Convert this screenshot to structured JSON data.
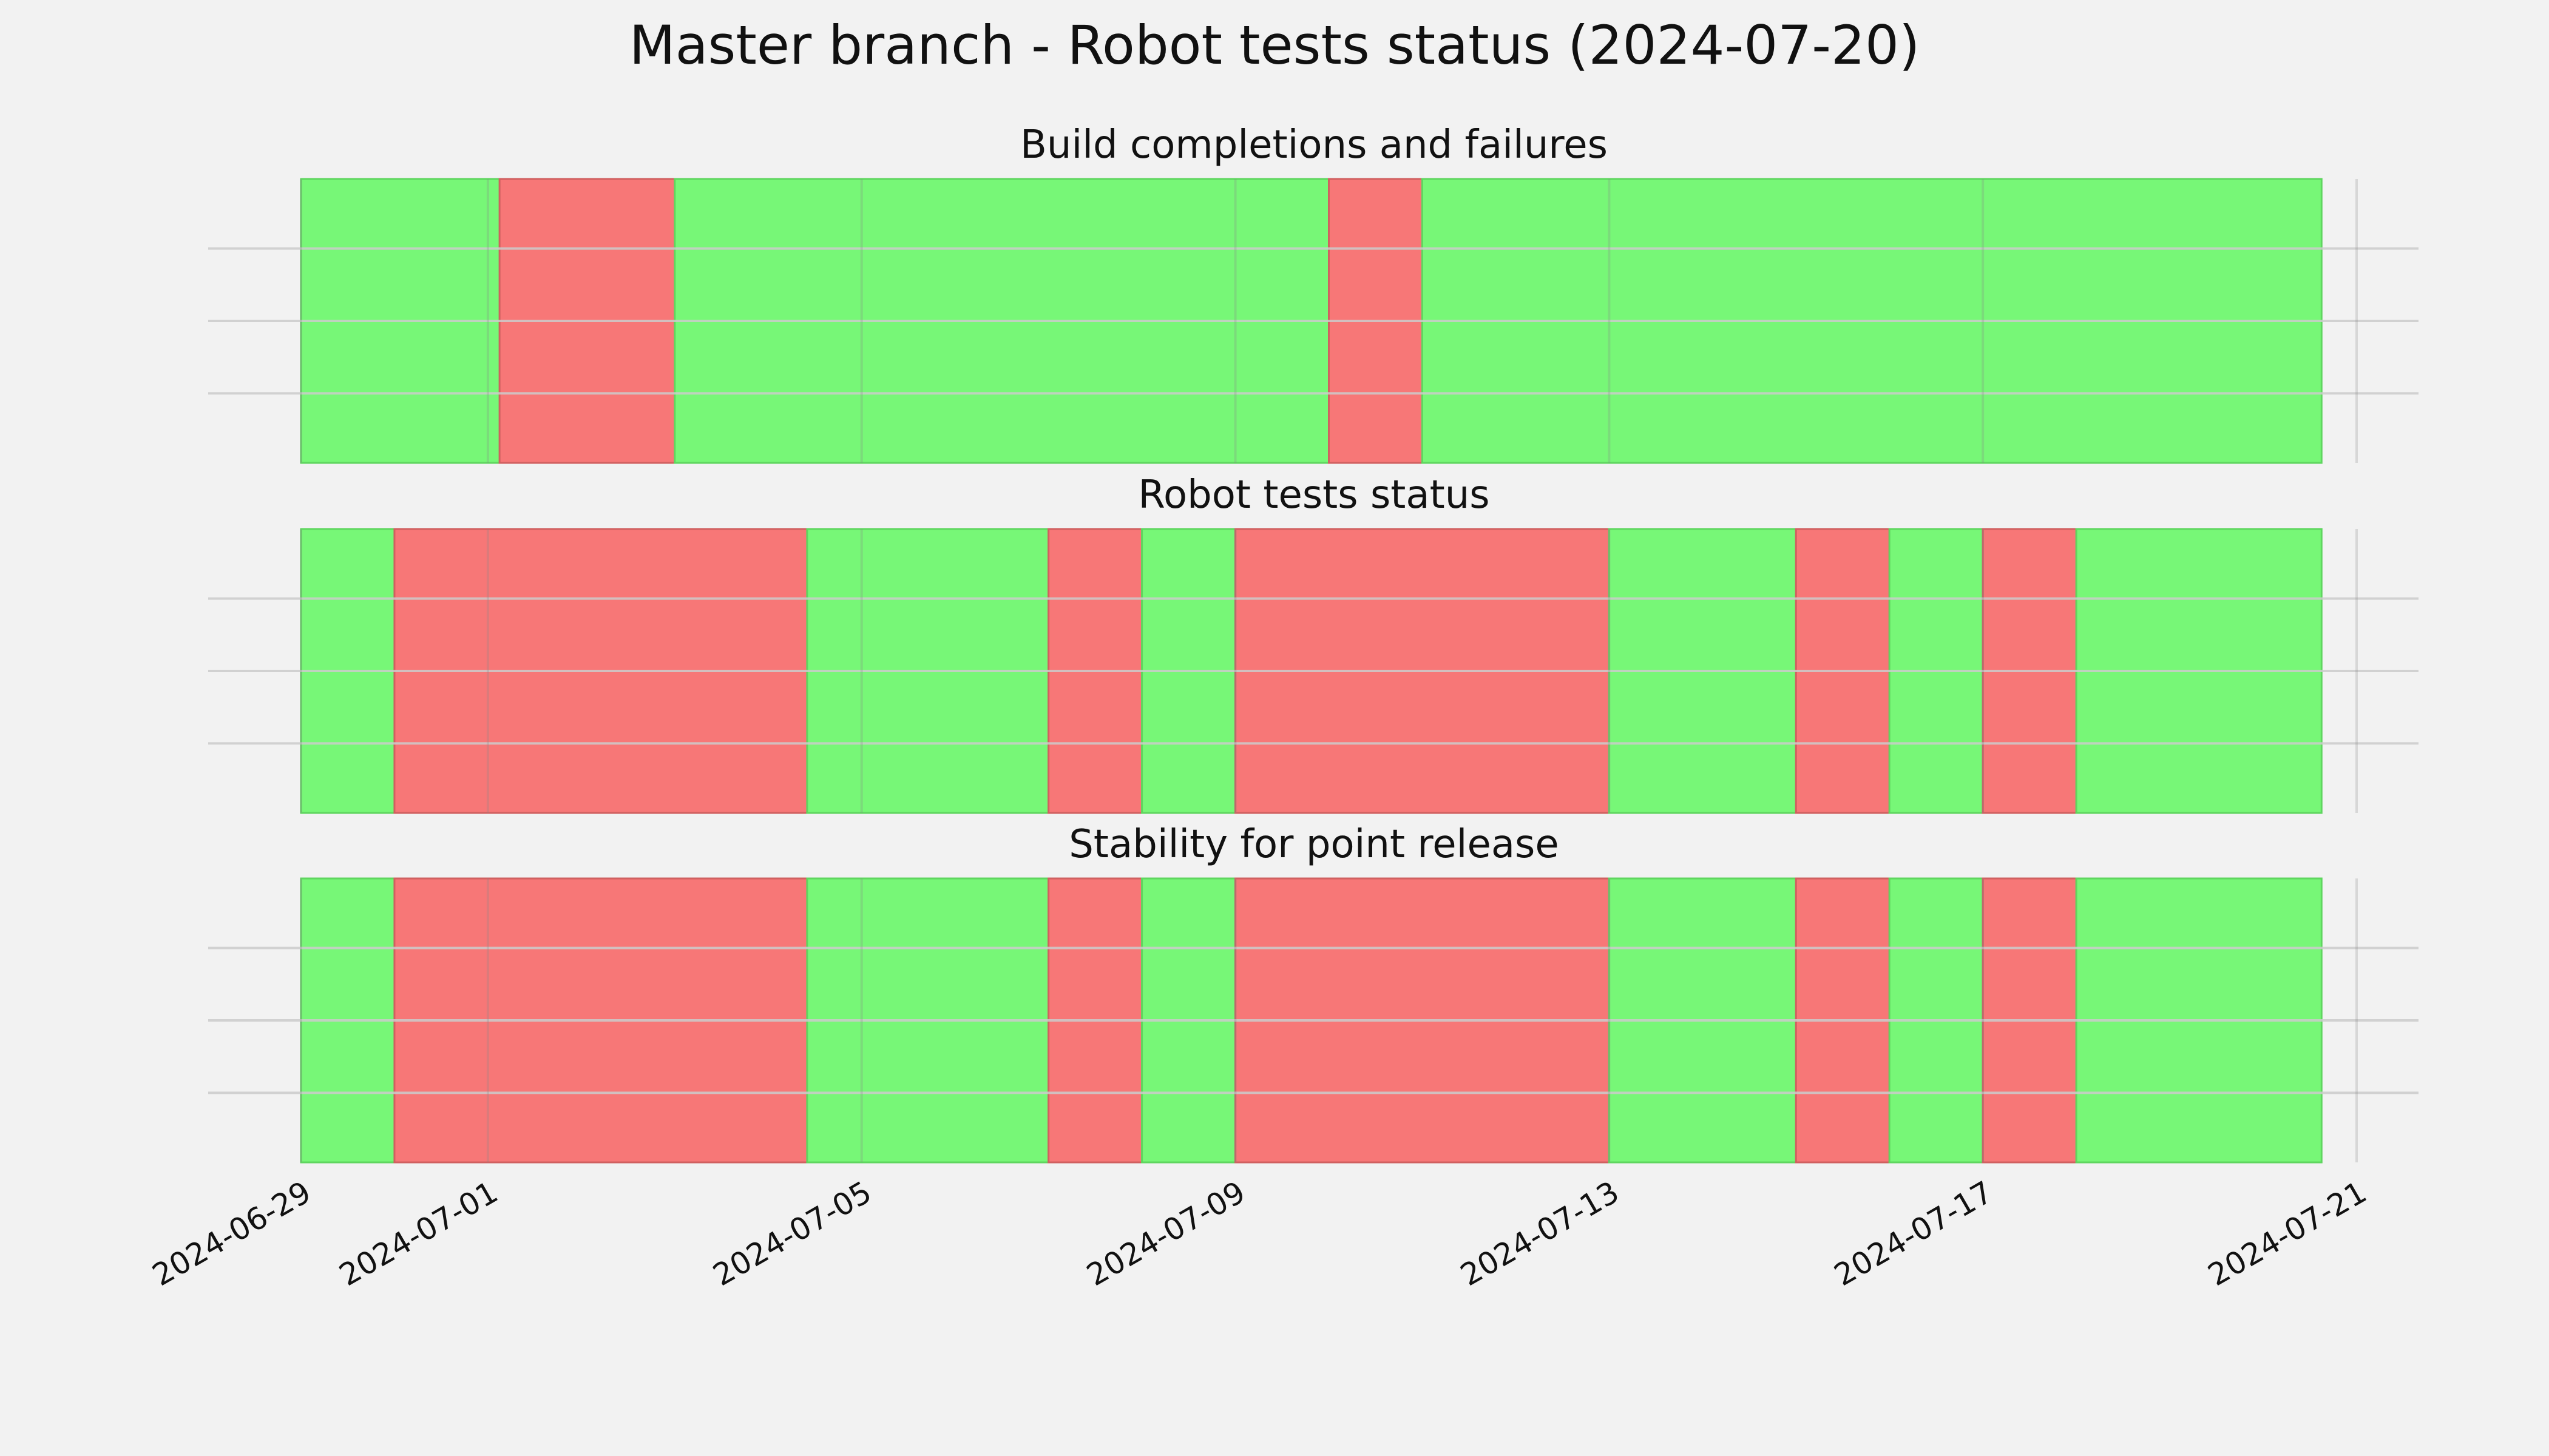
{
  "chart_data": {
    "type": "timeline",
    "title": "Master branch - Robot tests status (2024-07-20)",
    "x_range": [
      "2024-06-29",
      "2024-07-21"
    ],
    "x_ticks": [
      "2024-06-29",
      "2024-07-01",
      "2024-07-05",
      "2024-07-09",
      "2024-07-13",
      "2024-07-17",
      "2024-07-21"
    ],
    "grid": true,
    "colors": {
      "pass": "#77f777",
      "fail": "#f77777",
      "background": "#f2f2f2",
      "grid": "#cccccc"
    },
    "panels": [
      {
        "title": "Build completions and failures",
        "segments": [
          {
            "start": "2024-06-29",
            "end": "2024-07-01 03:00",
            "status": "pass"
          },
          {
            "start": "2024-07-01 03:00",
            "end": "2024-07-03",
            "status": "fail"
          },
          {
            "start": "2024-07-03",
            "end": "2024-07-10",
            "status": "pass"
          },
          {
            "start": "2024-07-10",
            "end": "2024-07-11",
            "status": "fail"
          },
          {
            "start": "2024-07-11",
            "end": "2024-07-20 15:00",
            "status": "pass"
          }
        ]
      },
      {
        "title": "Robot tests status",
        "segments": [
          {
            "start": "2024-06-29",
            "end": "2024-06-30",
            "status": "pass"
          },
          {
            "start": "2024-06-30",
            "end": "2024-07-04 10:00",
            "status": "fail"
          },
          {
            "start": "2024-07-04 10:00",
            "end": "2024-07-07",
            "status": "pass"
          },
          {
            "start": "2024-07-07",
            "end": "2024-07-08",
            "status": "fail"
          },
          {
            "start": "2024-07-08",
            "end": "2024-07-09",
            "status": "pass"
          },
          {
            "start": "2024-07-09",
            "end": "2024-07-13",
            "status": "fail"
          },
          {
            "start": "2024-07-13",
            "end": "2024-07-15",
            "status": "pass"
          },
          {
            "start": "2024-07-15",
            "end": "2024-07-16",
            "status": "fail"
          },
          {
            "start": "2024-07-16",
            "end": "2024-07-17",
            "status": "pass"
          },
          {
            "start": "2024-07-17",
            "end": "2024-07-18",
            "status": "fail"
          },
          {
            "start": "2024-07-18",
            "end": "2024-07-20 15:00",
            "status": "pass"
          }
        ]
      },
      {
        "title": "Stability for point release",
        "segments": [
          {
            "start": "2024-06-29",
            "end": "2024-06-30",
            "status": "pass"
          },
          {
            "start": "2024-06-30",
            "end": "2024-07-04 10:00",
            "status": "fail"
          },
          {
            "start": "2024-07-04 10:00",
            "end": "2024-07-07",
            "status": "pass"
          },
          {
            "start": "2024-07-07",
            "end": "2024-07-08",
            "status": "fail"
          },
          {
            "start": "2024-07-08",
            "end": "2024-07-09",
            "status": "pass"
          },
          {
            "start": "2024-07-09",
            "end": "2024-07-13",
            "status": "fail"
          },
          {
            "start": "2024-07-13",
            "end": "2024-07-15",
            "status": "pass"
          },
          {
            "start": "2024-07-15",
            "end": "2024-07-16",
            "status": "fail"
          },
          {
            "start": "2024-07-16",
            "end": "2024-07-17",
            "status": "pass"
          },
          {
            "start": "2024-07-17",
            "end": "2024-07-18",
            "status": "fail"
          },
          {
            "start": "2024-07-18",
            "end": "2024-07-20 15:00",
            "status": "pass"
          }
        ]
      }
    ]
  }
}
